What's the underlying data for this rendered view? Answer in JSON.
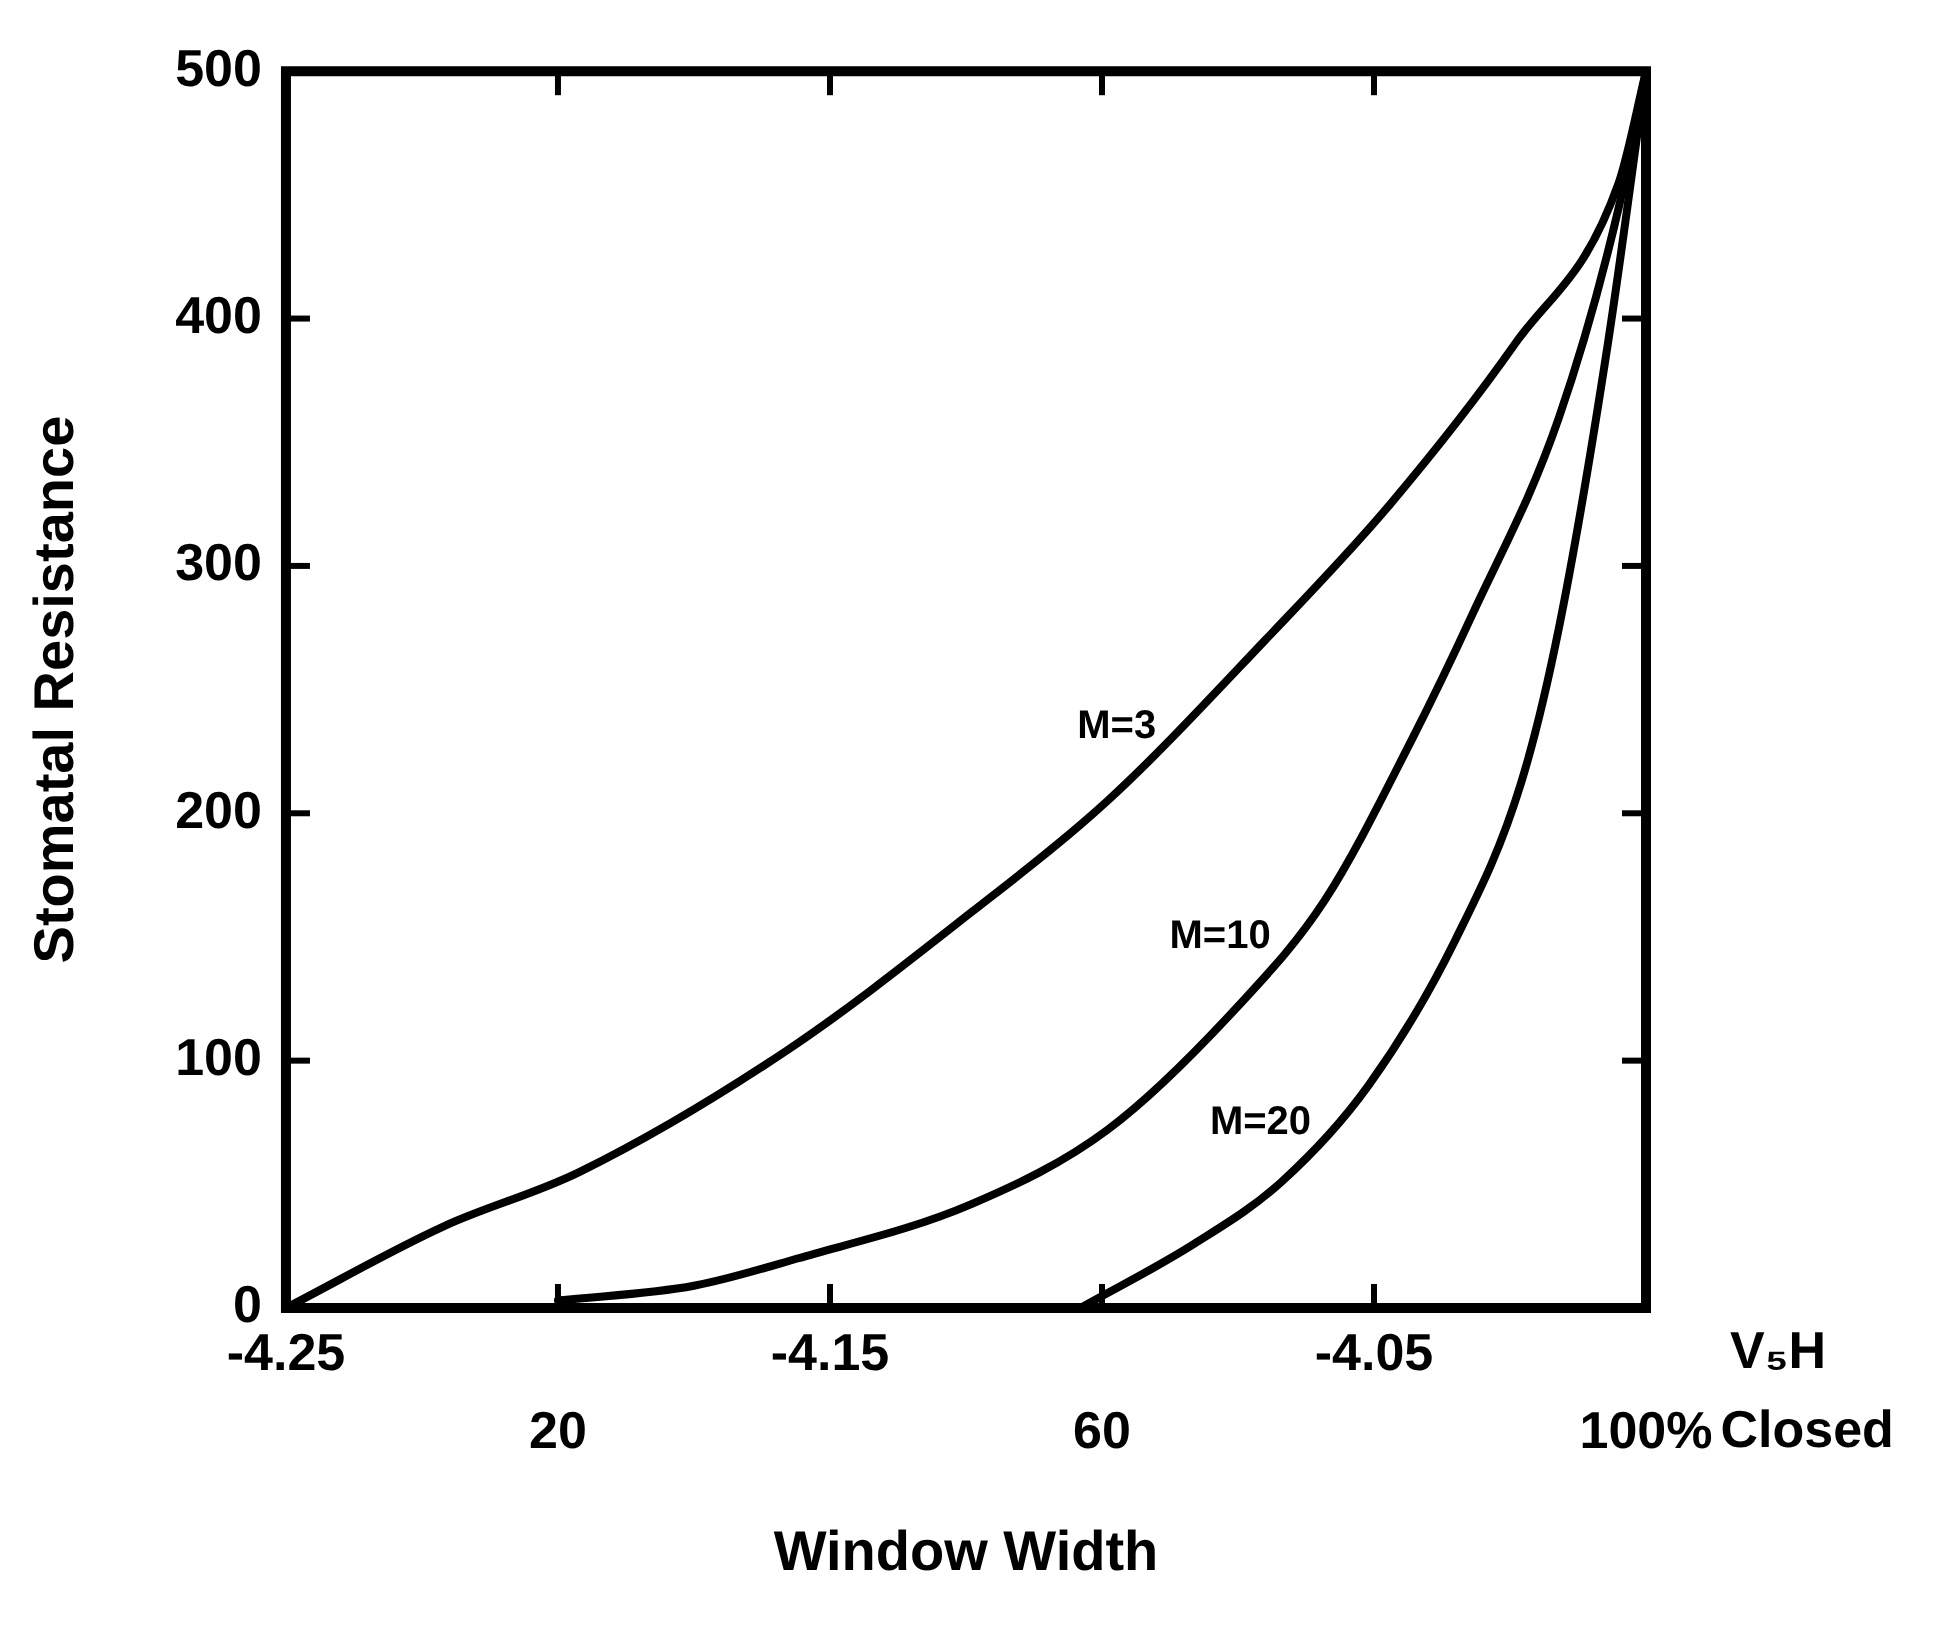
{
  "chart_data": {
    "type": "line",
    "xlabel": "V₅H",
    "x2label": "Window Width",
    "ylabel": "Stomatal Resistance",
    "xlim": [
      -4.25,
      -4.0
    ],
    "xticks": [
      -4.25,
      {
        "value": -4.2,
        "label": null
      },
      -4.15,
      {
        "value": -4.1,
        "label": null
      },
      -4.05,
      {
        "value": -4.0,
        "label": null
      }
    ],
    "x2lim": [
      0,
      100
    ],
    "x2ticks": [
      20,
      60,
      {
        "value": 100,
        "label": "100%"
      }
    ],
    "ylim": [
      0,
      500
    ],
    "yticks": [
      0,
      100,
      200,
      300,
      400,
      500
    ],
    "grid": false,
    "legend": false,
    "marker": "none",
    "line_style": "solid",
    "annotations": [
      "Closed"
    ],
    "series": [
      {
        "name": "M=3",
        "color": "#000000",
        "x": [
          -4.25,
          -4.221,
          -4.196,
          -4.158,
          -4.124,
          -4.099,
          -4.07,
          -4.047,
          -4.024,
          -4.005,
          -4.0
        ],
        "values": [
          0,
          33,
          55,
          104,
          160,
          205,
          270,
          325,
          390,
          455,
          500
        ]
      },
      {
        "name": "M=10",
        "color": "#000000",
        "x": [
          -4.2,
          -4.175,
          -4.156,
          -4.124,
          -4.099,
          -4.075,
          -4.059,
          -4.043,
          -4.032,
          -4.016,
          -4.005,
          -4.0
        ],
        "values": [
          3,
          9,
          20,
          42,
          72,
          122,
          165,
          230,
          280,
          360,
          445,
          500
        ]
      },
      {
        "name": "M=20",
        "color": "#000000",
        "x": [
          -4.104,
          -4.083,
          -4.067,
          -4.051,
          -4.035,
          -4.023,
          -4.016,
          -4.007,
          -4.0
        ],
        "values": [
          0,
          26,
          51,
          90,
          149,
          212,
          275,
          390,
          500
        ]
      }
    ]
  }
}
